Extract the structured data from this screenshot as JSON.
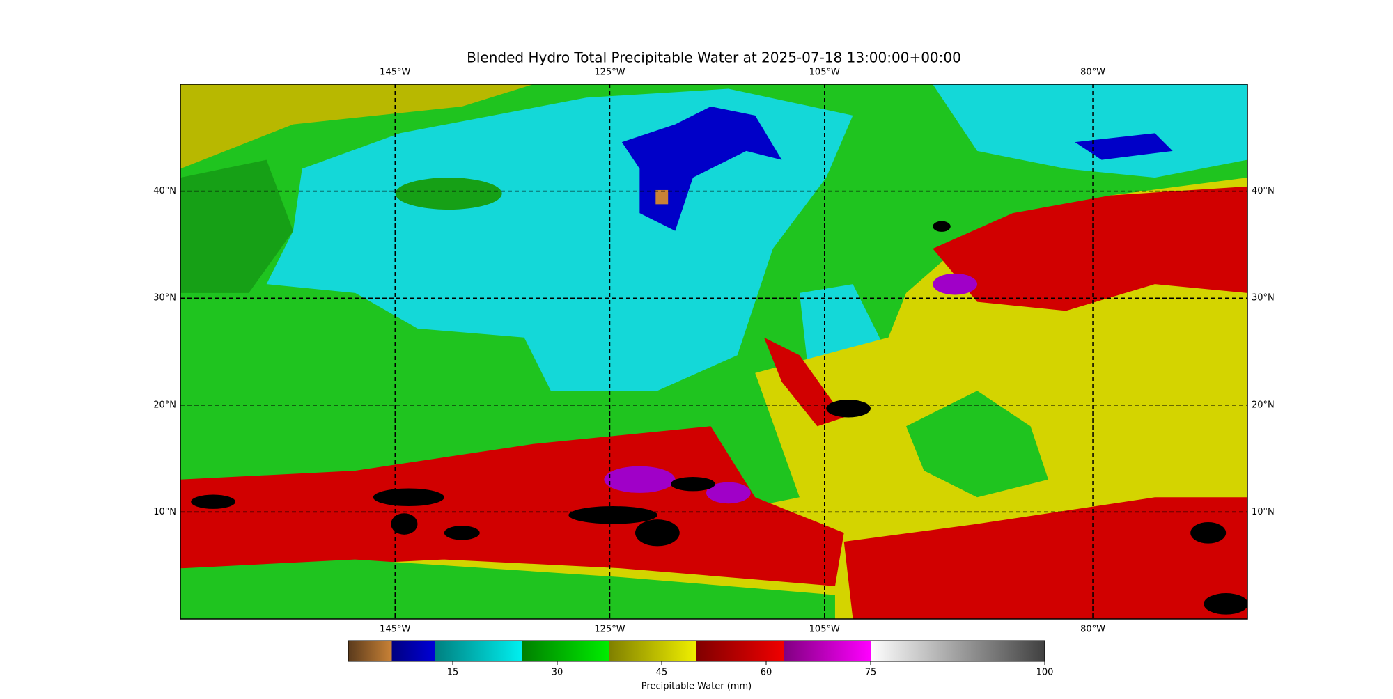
{
  "map": {
    "title": "Blended Hydro Total Precipitable Water at 2025-07-18 13:00:00+00:00",
    "xlim": [
      -165,
      -65.6
    ],
    "ylim": [
      0,
      50
    ],
    "xticks": [
      {
        "value": -145,
        "label": "145°W"
      },
      {
        "value": -125,
        "label": "125°W"
      },
      {
        "value": -105,
        "label": "105°W"
      },
      {
        "value": -80,
        "label": "80°W"
      }
    ],
    "yticks": [
      {
        "value": 10,
        "label": "10°N"
      },
      {
        "value": 20,
        "label": "20°N"
      },
      {
        "value": 30,
        "label": "30°N"
      },
      {
        "value": 40,
        "label": "40°N"
      }
    ],
    "grid": true
  },
  "colorbar": {
    "label": "Precipitable Water (mm)",
    "lim": [
      0,
      100
    ],
    "ticks": [
      15,
      30,
      45,
      60,
      75,
      100
    ],
    "segments": [
      {
        "from": 0,
        "to": 6.25,
        "colors": [
          "#5a3a1c",
          "#c98236"
        ]
      },
      {
        "from": 6.25,
        "to": 12.5,
        "colors": [
          "#000080",
          "#0000d8"
        ]
      },
      {
        "from": 12.5,
        "to": 25,
        "colors": [
          "#008080",
          "#00f0f0"
        ]
      },
      {
        "from": 25,
        "to": 37.5,
        "colors": [
          "#008000",
          "#00ee00"
        ]
      },
      {
        "from": 37.5,
        "to": 50,
        "colors": [
          "#808000",
          "#f0f000"
        ]
      },
      {
        "from": 50,
        "to": 62.5,
        "colors": [
          "#800000",
          "#f00000"
        ]
      },
      {
        "from": 62.5,
        "to": 75,
        "colors": [
          "#800080",
          "#ff00ff"
        ]
      },
      {
        "from": 75,
        "to": 100,
        "colors": [
          "#ffffff",
          "#404040"
        ]
      }
    ]
  }
}
